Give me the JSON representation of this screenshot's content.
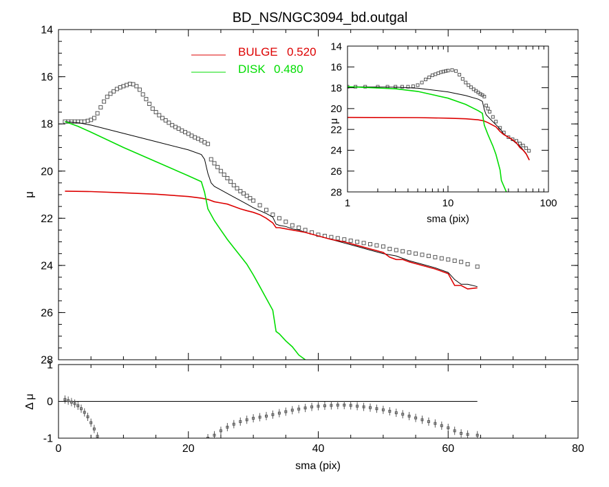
{
  "chart_data": {
    "type": "line",
    "title": "BD_NS/NGC3094_bd.outgal",
    "colors": {
      "bulge": "#dd0000",
      "disk": "#00dd00",
      "total": "#000000",
      "points": "#555555",
      "axes": "#000000"
    },
    "legend": {
      "placement": "top",
      "entries": [
        {
          "label": "BULGE",
          "value": "0.520",
          "color": "#dd0000"
        },
        {
          "label": "DISK",
          "value": "0.480",
          "color": "#00dd00"
        }
      ]
    },
    "main": {
      "xlabel": "",
      "ylabel": "μ",
      "xlim": [
        0,
        80
      ],
      "ylim": [
        28,
        14
      ],
      "reversed_y": true,
      "yticks": [
        "14",
        "16",
        "18",
        "20",
        "22",
        "24",
        "26",
        "28"
      ],
      "series": [
        {
          "key": "data",
          "style": "markers",
          "color": "#555555",
          "x": [
            1.0,
            1.5,
            2.0,
            2.5,
            3.0,
            3.5,
            4.0,
            4.5,
            5.0,
            5.5,
            6.0,
            6.5,
            7.0,
            7.5,
            8.0,
            8.5,
            9.0,
            9.5,
            10.0,
            10.5,
            11.0,
            11.5,
            12.0,
            12.5,
            13.0,
            13.5,
            14.0,
            14.5,
            15.0,
            15.5,
            16.0,
            16.5,
            17.0,
            17.5,
            18.0,
            18.5,
            19.0,
            19.5,
            20.0,
            20.5,
            21.0,
            21.5,
            22.0,
            22.5,
            23.0,
            23.5,
            24.0,
            24.5,
            25.0,
            25.5,
            26.0,
            26.5,
            27.0,
            27.5,
            28.0,
            28.5,
            29.0,
            29.5,
            30.0,
            31.0,
            32.0,
            33.0,
            34.0,
            35.0,
            36.0,
            37.0,
            38.0,
            39.0,
            40.0,
            41.0,
            42.0,
            43.0,
            44.0,
            45.0,
            46.0,
            47.0,
            48.0,
            49.0,
            50.0,
            51.0,
            52.0,
            53.0,
            54.0,
            55.0,
            56.0,
            57.0,
            58.0,
            59.0,
            60.0,
            61.0,
            62.0,
            63.0,
            64.5
          ],
          "y": [
            17.9,
            17.9,
            17.9,
            17.9,
            17.9,
            17.9,
            17.9,
            17.87,
            17.83,
            17.75,
            17.55,
            17.3,
            17.05,
            16.85,
            16.72,
            16.62,
            16.52,
            16.45,
            16.4,
            16.35,
            16.3,
            16.32,
            16.4,
            16.55,
            16.75,
            16.95,
            17.15,
            17.35,
            17.5,
            17.63,
            17.75,
            17.85,
            17.95,
            18.05,
            18.13,
            18.2,
            18.28,
            18.35,
            18.42,
            18.5,
            18.57,
            18.63,
            18.7,
            18.78,
            18.85,
            19.5,
            19.67,
            19.83,
            20.0,
            20.15,
            20.3,
            20.45,
            20.6,
            20.73,
            20.85,
            20.95,
            21.05,
            21.15,
            21.25,
            21.45,
            21.65,
            21.85,
            22.0,
            22.15,
            22.3,
            22.4,
            22.5,
            22.6,
            22.7,
            22.75,
            22.8,
            22.85,
            22.9,
            22.95,
            23.0,
            23.05,
            23.1,
            23.15,
            23.2,
            23.3,
            23.35,
            23.4,
            23.45,
            23.5,
            23.55,
            23.6,
            23.65,
            23.7,
            23.75,
            23.8,
            23.85,
            23.95,
            24.05
          ]
        },
        {
          "key": "total",
          "style": "line",
          "color": "#000000",
          "x": [
            1,
            3,
            5,
            10,
            15,
            20,
            22,
            22.5,
            23,
            23.5,
            24,
            25,
            26,
            27,
            28,
            29,
            30,
            31,
            32,
            33,
            33.5,
            34,
            35,
            36,
            37,
            38,
            40,
            42,
            44,
            46,
            48,
            50,
            51,
            52,
            53,
            54,
            56,
            58,
            60,
            61,
            62,
            63,
            64.5
          ],
          "y": [
            17.9,
            17.95,
            18.05,
            18.4,
            18.75,
            19.1,
            19.3,
            19.5,
            20.1,
            20.5,
            20.65,
            20.8,
            20.95,
            21.1,
            21.25,
            21.4,
            21.55,
            21.68,
            21.8,
            21.95,
            22.25,
            22.3,
            22.35,
            22.45,
            22.5,
            22.6,
            22.75,
            22.9,
            23.05,
            23.2,
            23.35,
            23.5,
            23.55,
            23.6,
            23.7,
            23.8,
            23.95,
            24.1,
            24.3,
            24.6,
            24.8,
            24.8,
            24.9
          ]
        },
        {
          "key": "bulge",
          "style": "line",
          "color": "#dd0000",
          "x": [
            1,
            5,
            10,
            15,
            20,
            22,
            23,
            24,
            25,
            26,
            27,
            28,
            29,
            30,
            31,
            32,
            33,
            33.5,
            34,
            35,
            36,
            37,
            38,
            40,
            42,
            44,
            46,
            48,
            50,
            51,
            52,
            53,
            54,
            56,
            58,
            60,
            61,
            62,
            63,
            64.5
          ],
          "y": [
            20.85,
            20.87,
            20.92,
            20.98,
            21.08,
            21.15,
            21.2,
            21.3,
            21.35,
            21.4,
            21.5,
            21.6,
            21.68,
            21.75,
            21.85,
            22.0,
            22.2,
            22.4,
            22.4,
            22.45,
            22.5,
            22.55,
            22.6,
            22.75,
            22.9,
            23.0,
            23.15,
            23.3,
            23.45,
            23.65,
            23.75,
            23.75,
            23.85,
            24.0,
            24.15,
            24.35,
            24.85,
            24.85,
            25.0,
            24.95
          ]
        },
        {
          "key": "disk",
          "style": "line",
          "color": "#00dd00",
          "x": [
            1,
            3,
            5,
            10,
            15,
            20,
            22,
            22.5,
            23,
            24,
            25,
            26,
            27,
            28,
            29,
            30,
            31,
            32,
            33,
            33.5,
            34,
            35,
            36,
            37,
            38.5
          ],
          "y": [
            17.9,
            18.1,
            18.35,
            19.0,
            19.6,
            20.2,
            20.45,
            20.9,
            21.6,
            22.1,
            22.5,
            22.9,
            23.25,
            23.6,
            23.95,
            24.4,
            24.9,
            25.4,
            25.9,
            26.8,
            26.9,
            27.2,
            27.45,
            27.8,
            28.1
          ]
        }
      ]
    },
    "residual": {
      "xlabel": "sma (pix)",
      "ylabel": "Δ μ",
      "xlim": [
        0,
        80
      ],
      "ylim": [
        -1,
        1
      ],
      "xticks": [
        "0",
        "20",
        "40",
        "60",
        "80"
      ],
      "yticks": [
        "-1",
        "0",
        "1"
      ],
      "zero_line_end": 64.5,
      "series": [
        {
          "key": "residual_points",
          "style": "markers-errorbars",
          "color": "#555555",
          "x": [
            1,
            1.5,
            2,
            2.5,
            3,
            3.5,
            4,
            4.5,
            5,
            5.5,
            6,
            23,
            24,
            25,
            26,
            27,
            28,
            29,
            30,
            31,
            32,
            33,
            34,
            35,
            36,
            37,
            38,
            39,
            40,
            41,
            42,
            43,
            44,
            45,
            46,
            47,
            48,
            49,
            50,
            51,
            52,
            53,
            54,
            55,
            56,
            57,
            58,
            59,
            60,
            61,
            62,
            63,
            64.5
          ],
          "y": [
            0.05,
            0.02,
            -0.02,
            -0.06,
            -0.12,
            -0.2,
            -0.3,
            -0.42,
            -0.58,
            -0.75,
            -0.95,
            -1.0,
            -0.92,
            -0.8,
            -0.7,
            -0.62,
            -0.55,
            -0.5,
            -0.46,
            -0.43,
            -0.4,
            -0.36,
            -0.32,
            -0.28,
            -0.24,
            -0.21,
            -0.18,
            -0.15,
            -0.13,
            -0.12,
            -0.11,
            -0.1,
            -0.1,
            -0.11,
            -0.13,
            -0.15,
            -0.17,
            -0.2,
            -0.23,
            -0.27,
            -0.31,
            -0.35,
            -0.4,
            -0.45,
            -0.5,
            -0.55,
            -0.6,
            -0.66,
            -0.72,
            -0.8,
            -0.87,
            -0.9,
            -0.92
          ]
        }
      ]
    },
    "inset": {
      "xlabel": "sma (pix)",
      "ylabel": "μ",
      "xscale": "log",
      "xlim": [
        1,
        100
      ],
      "ylim": [
        28,
        14
      ],
      "xticks": [
        "1",
        "10",
        "100"
      ],
      "yticks": [
        "14",
        "16",
        "18",
        "20",
        "22",
        "24",
        "26",
        "28"
      ],
      "series": [
        {
          "key": "data",
          "style": "markers",
          "color": "#555555",
          "x": [
            1.0,
            1.2,
            1.5,
            2.0,
            2.5,
            3.0,
            3.5,
            4.0,
            4.5,
            5.0,
            5.5,
            6.0,
            6.5,
            7.0,
            7.5,
            8.0,
            8.5,
            9.0,
            9.5,
            10.0,
            11.0,
            12.0,
            13.0,
            14.0,
            15.0,
            16.0,
            17.0,
            18.0,
            19.0,
            20.0,
            21.0,
            22.0,
            23.0,
            24.0,
            25.0,
            26.0,
            28.0,
            30.0,
            33.0,
            36.0,
            40.0,
            44.0,
            48.0,
            52.0,
            56.0,
            60.0,
            64.0
          ],
          "y": [
            17.9,
            17.9,
            17.9,
            17.9,
            17.9,
            17.9,
            17.9,
            17.9,
            17.85,
            17.75,
            17.5,
            17.2,
            17.0,
            16.8,
            16.7,
            16.6,
            16.5,
            16.45,
            16.4,
            16.35,
            16.3,
            16.4,
            16.75,
            17.15,
            17.5,
            17.75,
            17.95,
            18.15,
            18.3,
            18.45,
            18.6,
            18.7,
            18.85,
            19.7,
            20.0,
            20.3,
            20.8,
            21.25,
            21.85,
            22.3,
            22.75,
            22.95,
            23.1,
            23.35,
            23.55,
            23.8,
            24.05
          ]
        },
        {
          "key": "total",
          "style": "line",
          "color": "#000000",
          "x": [
            1,
            3,
            5,
            10,
            15,
            20,
            22,
            23,
            24,
            26,
            30,
            33,
            36,
            40,
            44,
            48,
            52,
            56,
            60,
            64.5
          ],
          "y": [
            17.9,
            17.95,
            18.05,
            18.4,
            18.75,
            19.1,
            19.3,
            20.1,
            20.6,
            20.95,
            21.55,
            21.95,
            22.45,
            22.75,
            23.05,
            23.35,
            23.6,
            23.95,
            24.3,
            24.9
          ]
        },
        {
          "key": "bulge",
          "style": "line",
          "color": "#dd0000",
          "x": [
            1,
            5,
            10,
            15,
            20,
            22,
            23,
            25,
            30,
            33,
            36,
            40,
            44,
            48,
            52,
            56,
            60,
            64.5
          ],
          "y": [
            20.85,
            20.87,
            20.92,
            20.98,
            21.08,
            21.15,
            21.2,
            21.35,
            21.75,
            22.2,
            22.5,
            22.75,
            23.0,
            23.3,
            23.75,
            24.0,
            24.35,
            24.95
          ]
        },
        {
          "key": "disk",
          "style": "line",
          "color": "#00dd00",
          "x": [
            1,
            3,
            5,
            10,
            15,
            20,
            22,
            23,
            25,
            28,
            30,
            33,
            34,
            36,
            38.5
          ],
          "y": [
            17.9,
            18.1,
            18.35,
            19.0,
            19.6,
            20.2,
            20.45,
            21.6,
            22.5,
            23.6,
            24.4,
            25.9,
            26.9,
            27.45,
            28.1
          ]
        }
      ]
    }
  }
}
